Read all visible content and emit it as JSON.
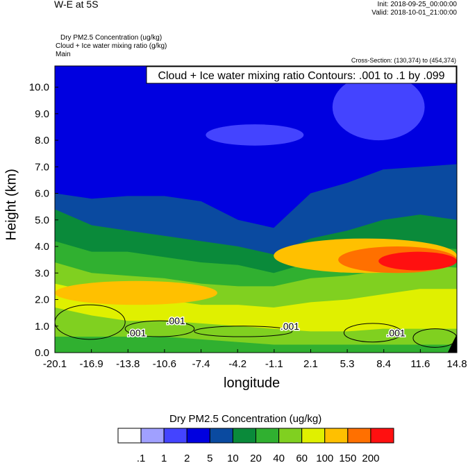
{
  "header": {
    "title": "W-E at 5S",
    "init": "Init: 2018-09-25_00:00:00",
    "valid": "Valid: 2018-10-01_21:00:00",
    "subtitle_1": "Dry PM2.5 Concentration   (ug/kg)",
    "subtitle_2": "Cloud + Ice water mixing ratio   (g/kg)",
    "subtitle_3": "Main",
    "cross_section": "Cross-Section: (130,374) to (454,374)"
  },
  "chart_data": {
    "type": "heatmap",
    "title": "W-E at 5S",
    "xlabel": "longitude",
    "ylabel": "Height (km)",
    "x_ticks": [
      "-20.1",
      "-16.9",
      "-13.8",
      "-10.6",
      "-7.4",
      "-4.2",
      "-1.1",
      "2.1",
      "5.3",
      "8.4",
      "11.6",
      "14.8"
    ],
    "y_ticks": [
      "0.0",
      "1.0",
      "2.0",
      "3.0",
      "4.0",
      "5.0",
      "6.0",
      "7.0",
      "8.0",
      "9.0",
      "10.0"
    ],
    "xlim": [
      -20.1,
      14.8
    ],
    "ylim": [
      0,
      10.8
    ],
    "contour_label": "Cloud + Ice water mixing ratio Contours: .001 to .1 by .099",
    "contour_value_labels": [
      ".001",
      ".001",
      ".001",
      ".001"
    ],
    "colorbar": {
      "title": "Dry PM2.5 Concentration  (ug/kg)",
      "labels": [
        ".1",
        "1",
        "2",
        "5",
        "10",
        "20",
        "40",
        "60",
        "100",
        "150",
        "200"
      ],
      "colors": [
        "#ffffff",
        "#a0a0ff",
        "#4444ff",
        "#0000e0",
        "#0a4aa0",
        "#0a8a3a",
        "#30b030",
        "#80d020",
        "#e0f000",
        "#ffc000",
        "#ff7000",
        "#ff1010"
      ]
    },
    "profile": {
      "x": [
        -20.1,
        -16.9,
        -13.8,
        -10.6,
        -7.4,
        -4.2,
        -1.1,
        2.1,
        5.3,
        8.4,
        11.6,
        14.8
      ],
      "boundaries_km": [
        [
          0.6,
          1.7,
          2.6,
          3.4,
          4.2,
          5.4,
          6.0
        ],
        [
          0.6,
          1.4,
          2.3,
          3.0,
          3.8,
          4.8,
          5.8
        ],
        [
          0.6,
          1.2,
          2.2,
          2.9,
          3.8,
          4.6,
          5.9
        ],
        [
          0.6,
          1.2,
          2.0,
          2.8,
          3.6,
          4.4,
          5.9
        ],
        [
          0.5,
          1.1,
          1.8,
          2.6,
          3.4,
          4.2,
          5.7
        ],
        [
          0.4,
          1.0,
          1.8,
          2.5,
          3.3,
          4.0,
          5.0
        ],
        [
          0.3,
          0.9,
          1.7,
          2.5,
          3.0,
          3.7,
          4.7
        ],
        [
          0.3,
          0.8,
          1.9,
          2.8,
          3.4,
          4.3,
          6.0
        ],
        [
          0.3,
          0.8,
          2.0,
          2.9,
          3.6,
          4.6,
          6.4
        ],
        [
          0.3,
          0.9,
          2.2,
          3.1,
          4.0,
          5.0,
          6.9
        ],
        [
          0.3,
          0.9,
          2.4,
          3.3,
          4.0,
          5.2,
          7.0
        ],
        [
          0.3,
          0.9,
          2.4,
          3.2,
          3.9,
          5.0,
          7.1
        ]
      ],
      "layer_colors": [
        "#0a8a3a",
        "#30b030",
        "#80d020",
        "#e0f000",
        "#80d020",
        "#30b030",
        "#0a8a3a",
        "#0a4aa0"
      ],
      "top_color": "#0000e0"
    },
    "hotspots": [
      {
        "color": "#ffc000",
        "x0": -1.1,
        "x1": 14.8,
        "y0": 3.0,
        "y1": 4.3
      },
      {
        "color": "#ff7000",
        "x0": 4.5,
        "x1": 14.8,
        "y0": 3.0,
        "y1": 4.0
      },
      {
        "color": "#ff1010",
        "x0": 8.0,
        "x1": 14.8,
        "y0": 3.1,
        "y1": 3.8
      },
      {
        "color": "#ffc000",
        "x0": -20.1,
        "x1": -6.0,
        "y0": 1.8,
        "y1": 2.7
      },
      {
        "color": "#4444ff",
        "x0": -7.0,
        "x1": 1.5,
        "y0": 7.8,
        "y1": 8.6
      },
      {
        "color": "#4444ff",
        "x0": 4.0,
        "x1": 12.0,
        "y0": 8.0,
        "y1": 10.5
      }
    ]
  }
}
